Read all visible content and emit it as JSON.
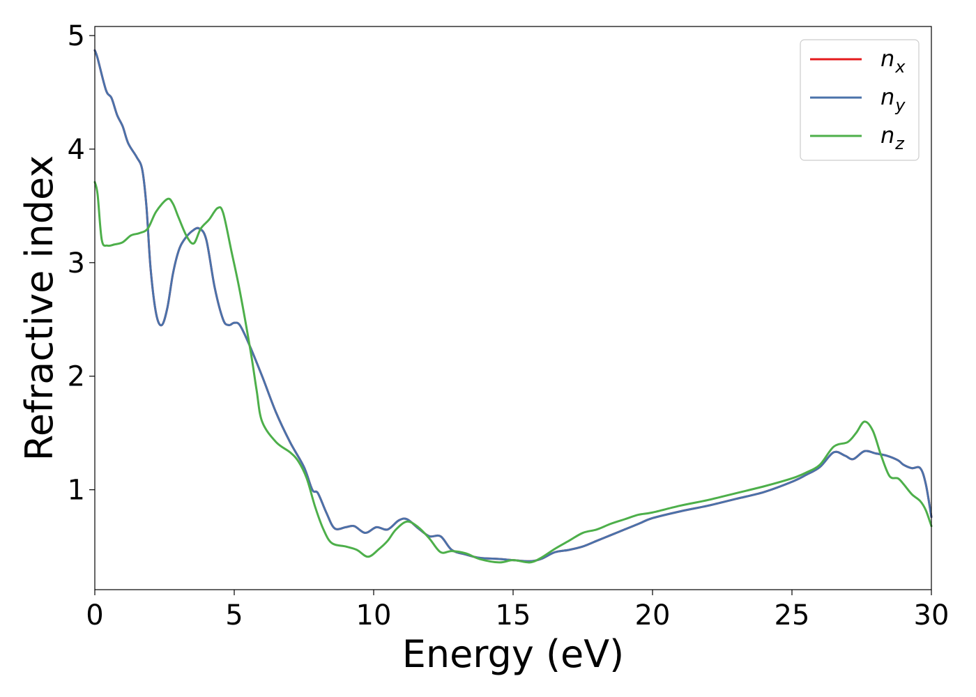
{
  "chart_data": {
    "type": "line",
    "title": "",
    "xlabel": "Energy (eV)",
    "ylabel": "Refractive index",
    "xlim": [
      0,
      30
    ],
    "ylim": [
      0.12,
      5.08
    ],
    "xticks": [
      "0",
      "5",
      "10",
      "15",
      "20",
      "25",
      "30"
    ],
    "yticks": [
      "1",
      "2",
      "3",
      "4",
      "5"
    ],
    "grid": false,
    "legend_position": "top-right",
    "series": [
      {
        "name": "n_x",
        "label_main": "n",
        "label_sub": "x",
        "color": "#e41a1c",
        "x": [
          0,
          0.1,
          0.4,
          0.6,
          0.8,
          1.0,
          1.2,
          1.5,
          1.7,
          1.85,
          2.0,
          2.2,
          2.4,
          2.6,
          2.8,
          3.0,
          3.2,
          3.5,
          3.75,
          4.0,
          4.3,
          4.6,
          4.8,
          5.0,
          5.2,
          5.5,
          6.0,
          6.5,
          7.0,
          7.5,
          7.8,
          8.0,
          8.3,
          8.6,
          9.0,
          9.3,
          9.7,
          10.1,
          10.5,
          10.9,
          11.2,
          11.6,
          12.0,
          12.4,
          12.8,
          13.3,
          13.8,
          14.5,
          15.0,
          15.6,
          16.0,
          16.5,
          17.0,
          17.5,
          18.0,
          18.5,
          19.0,
          19.5,
          20.0,
          21.0,
          22.0,
          23.0,
          24.0,
          25.0,
          25.5,
          26.0,
          26.5,
          26.9,
          27.2,
          27.6,
          28.0,
          28.4,
          28.8,
          29.0,
          29.3,
          29.6,
          29.8,
          30.0
        ],
        "y": [
          4.87,
          4.8,
          4.52,
          4.45,
          4.3,
          4.2,
          4.05,
          3.93,
          3.82,
          3.5,
          2.95,
          2.55,
          2.45,
          2.6,
          2.9,
          3.1,
          3.2,
          3.28,
          3.3,
          3.2,
          2.78,
          2.5,
          2.45,
          2.47,
          2.45,
          2.3,
          2.0,
          1.68,
          1.42,
          1.2,
          1.0,
          0.97,
          0.8,
          0.66,
          0.67,
          0.68,
          0.62,
          0.67,
          0.65,
          0.73,
          0.74,
          0.66,
          0.59,
          0.59,
          0.47,
          0.43,
          0.4,
          0.39,
          0.38,
          0.37,
          0.39,
          0.45,
          0.47,
          0.5,
          0.55,
          0.6,
          0.65,
          0.7,
          0.75,
          0.81,
          0.86,
          0.92,
          0.98,
          1.07,
          1.13,
          1.2,
          1.33,
          1.3,
          1.27,
          1.34,
          1.32,
          1.3,
          1.26,
          1.22,
          1.19,
          1.19,
          1.05,
          0.76
        ]
      },
      {
        "name": "n_y",
        "label_main": "n",
        "label_sub": "y",
        "color": "#4a72aa",
        "x": [
          0,
          0.1,
          0.4,
          0.6,
          0.8,
          1.0,
          1.2,
          1.5,
          1.7,
          1.85,
          2.0,
          2.2,
          2.4,
          2.6,
          2.8,
          3.0,
          3.2,
          3.5,
          3.75,
          4.0,
          4.3,
          4.6,
          4.8,
          5.0,
          5.2,
          5.5,
          6.0,
          6.5,
          7.0,
          7.5,
          7.8,
          8.0,
          8.3,
          8.6,
          9.0,
          9.3,
          9.7,
          10.1,
          10.5,
          10.9,
          11.2,
          11.6,
          12.0,
          12.4,
          12.8,
          13.3,
          13.8,
          14.5,
          15.0,
          15.6,
          16.0,
          16.5,
          17.0,
          17.5,
          18.0,
          18.5,
          19.0,
          19.5,
          20.0,
          21.0,
          22.0,
          23.0,
          24.0,
          25.0,
          25.5,
          26.0,
          26.5,
          26.9,
          27.2,
          27.6,
          28.0,
          28.4,
          28.8,
          29.0,
          29.3,
          29.6,
          29.8,
          30.0
        ],
        "y": [
          4.87,
          4.8,
          4.52,
          4.45,
          4.3,
          4.2,
          4.05,
          3.93,
          3.82,
          3.5,
          2.95,
          2.55,
          2.45,
          2.6,
          2.9,
          3.1,
          3.2,
          3.28,
          3.3,
          3.2,
          2.78,
          2.5,
          2.45,
          2.47,
          2.45,
          2.3,
          2.0,
          1.68,
          1.42,
          1.2,
          1.0,
          0.97,
          0.8,
          0.66,
          0.67,
          0.68,
          0.62,
          0.67,
          0.65,
          0.73,
          0.74,
          0.66,
          0.59,
          0.59,
          0.47,
          0.43,
          0.4,
          0.39,
          0.38,
          0.37,
          0.39,
          0.45,
          0.47,
          0.5,
          0.55,
          0.6,
          0.65,
          0.7,
          0.75,
          0.81,
          0.86,
          0.92,
          0.98,
          1.07,
          1.13,
          1.2,
          1.33,
          1.3,
          1.27,
          1.34,
          1.32,
          1.3,
          1.26,
          1.22,
          1.19,
          1.19,
          1.05,
          0.76
        ]
      },
      {
        "name": "n_z",
        "label_main": "n",
        "label_sub": "z",
        "color": "#4daf4a",
        "x": [
          0,
          0.1,
          0.25,
          0.45,
          0.7,
          1.0,
          1.3,
          1.6,
          1.9,
          2.2,
          2.6,
          2.8,
          3.0,
          3.3,
          3.55,
          3.8,
          4.1,
          4.4,
          4.6,
          4.9,
          5.2,
          5.6,
          5.8,
          6.0,
          6.5,
          7.0,
          7.3,
          7.6,
          7.9,
          8.2,
          8.5,
          9.0,
          9.4,
          9.8,
          10.2,
          10.5,
          10.8,
          11.2,
          11.6,
          12.0,
          12.4,
          12.8,
          13.3,
          13.8,
          14.5,
          15.0,
          15.6,
          16.0,
          16.5,
          17.0,
          17.5,
          18.0,
          18.5,
          19.0,
          19.5,
          20.0,
          21.0,
          22.0,
          23.0,
          24.0,
          25.0,
          25.5,
          26.0,
          26.5,
          27.0,
          27.3,
          27.6,
          27.9,
          28.2,
          28.5,
          28.8,
          29.0,
          29.3,
          29.6,
          29.8,
          30.0
        ],
        "y": [
          3.71,
          3.6,
          3.2,
          3.15,
          3.16,
          3.18,
          3.24,
          3.26,
          3.3,
          3.45,
          3.56,
          3.52,
          3.4,
          3.23,
          3.17,
          3.3,
          3.38,
          3.48,
          3.44,
          3.1,
          2.75,
          2.2,
          1.88,
          1.6,
          1.42,
          1.33,
          1.25,
          1.1,
          0.85,
          0.65,
          0.53,
          0.5,
          0.47,
          0.41,
          0.48,
          0.55,
          0.65,
          0.72,
          0.67,
          0.57,
          0.45,
          0.46,
          0.44,
          0.39,
          0.36,
          0.38,
          0.36,
          0.4,
          0.48,
          0.55,
          0.62,
          0.65,
          0.7,
          0.74,
          0.78,
          0.8,
          0.86,
          0.91,
          0.97,
          1.03,
          1.1,
          1.15,
          1.22,
          1.38,
          1.42,
          1.5,
          1.6,
          1.52,
          1.3,
          1.12,
          1.1,
          1.05,
          0.96,
          0.9,
          0.82,
          0.68
        ]
      }
    ]
  }
}
